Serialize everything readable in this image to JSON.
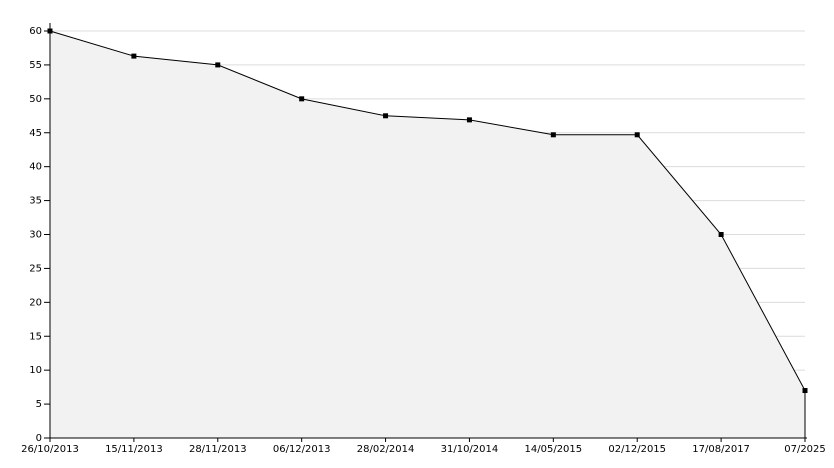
{
  "chart_data": {
    "type": "area",
    "categories": [
      "26/10/2013",
      "15/11/2013",
      "28/11/2013",
      "06/12/2013",
      "28/02/2014",
      "31/10/2014",
      "14/05/2015",
      "02/12/2015",
      "17/08/2017",
      "07/2025"
    ],
    "values": [
      60,
      56.3,
      55,
      50,
      47.5,
      46.9,
      44.7,
      44.7,
      30,
      7
    ],
    "color": "#000000",
    "fill": "#f2f2f2",
    "ylim": [
      0,
      60
    ],
    "yticks": [
      0,
      5,
      10,
      15,
      20,
      25,
      30,
      35,
      40,
      45,
      50,
      55,
      60
    ],
    "grid": true
  }
}
